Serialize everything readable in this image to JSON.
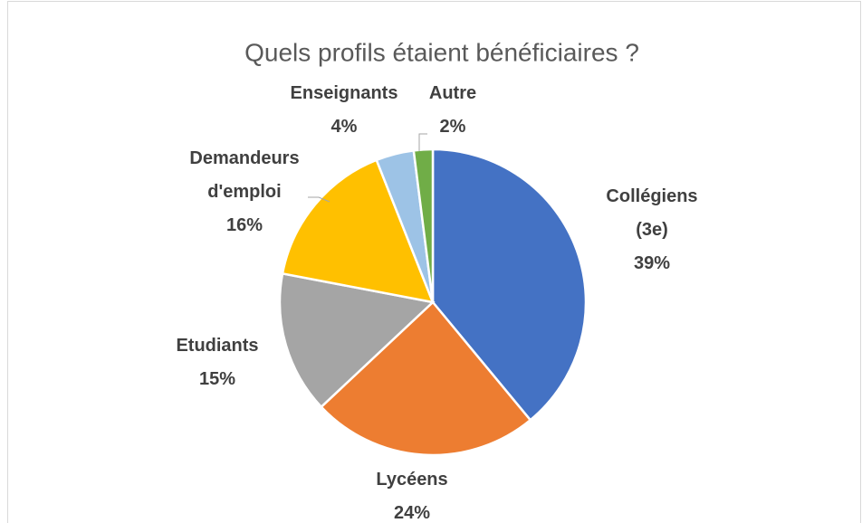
{
  "chart_data": {
    "type": "pie",
    "title": "Quels profils étaient bénéficiaires ?",
    "categories": [
      "Collégiens (3e)",
      "Lycéens",
      "Etudiants",
      "Demandeurs d'emploi",
      "Enseignants",
      "Autre"
    ],
    "values": [
      39,
      24,
      15,
      16,
      4,
      2
    ],
    "value_labels": [
      "39%",
      "24%",
      "15%",
      "16%",
      "4%",
      "2%"
    ],
    "colors": [
      "#4472c4",
      "#ed7d31",
      "#a5a5a5",
      "#ffc000",
      "#9dc3e6",
      "#70ad47"
    ]
  }
}
